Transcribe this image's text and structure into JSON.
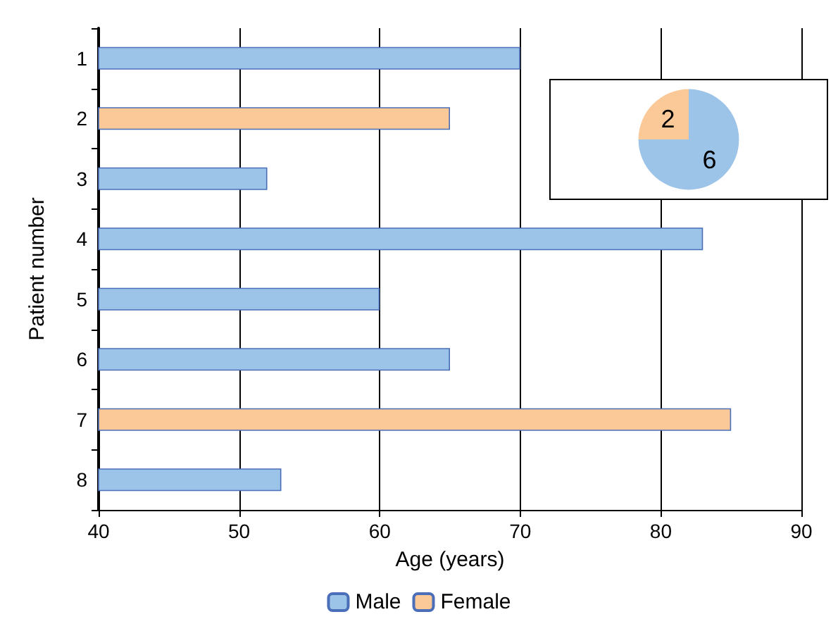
{
  "chart_data": [
    {
      "type": "bar",
      "orientation": "horizontal",
      "stacked": true,
      "xlabel": "Age (years)",
      "ylabel": "Patient number",
      "categories": [
        "1",
        "2",
        "3",
        "4",
        "5",
        "6",
        "7",
        "8"
      ],
      "series": [
        {
          "name": "Male",
          "color": "#9cc3e8",
          "values": [
            70,
            null,
            52,
            83,
            60,
            65,
            null,
            53
          ]
        },
        {
          "name": "Female",
          "color": "#fbc898",
          "values": [
            null,
            65,
            null,
            null,
            null,
            null,
            85,
            null
          ]
        }
      ],
      "xlim": [
        40,
        90
      ],
      "xticks": [
        40,
        50,
        60,
        70,
        80,
        90
      ],
      "grid": "x",
      "legend": "bottom"
    },
    {
      "type": "pie",
      "categories": [
        null,
        null
      ],
      "values": [
        2,
        6
      ],
      "colors": [
        "#fbc898",
        "#9cc3e8"
      ],
      "data_labels": true
    }
  ]
}
